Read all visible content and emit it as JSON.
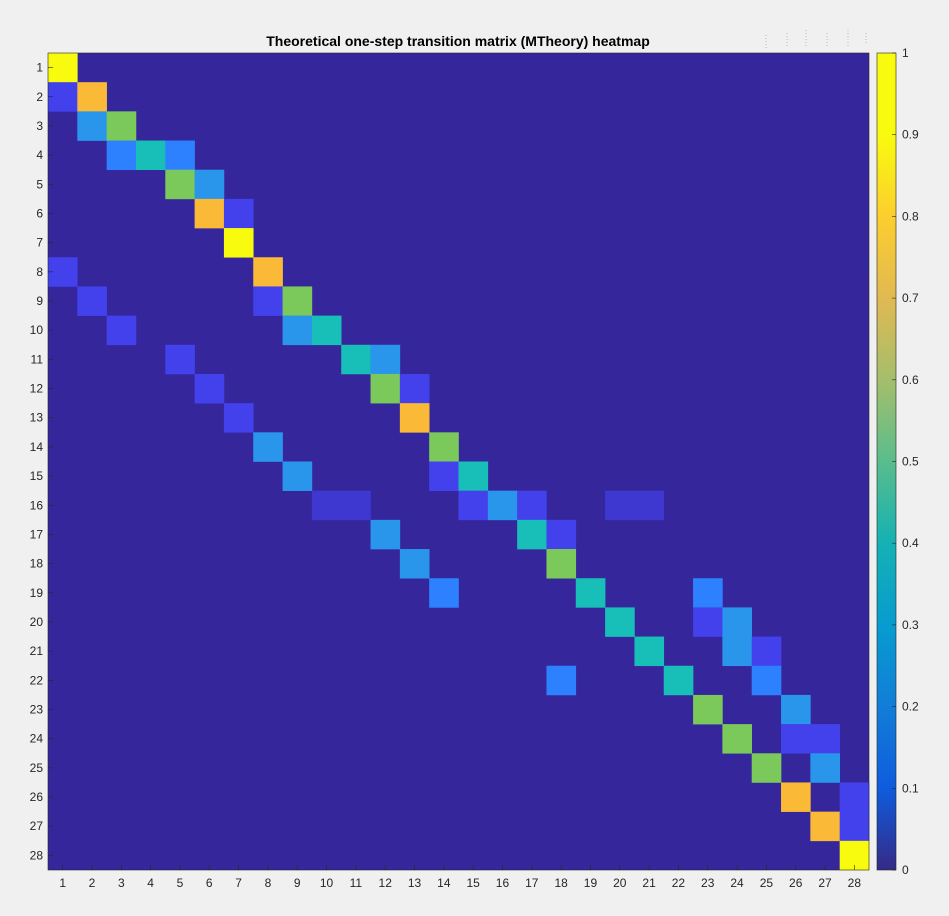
{
  "chart_data": {
    "type": "heatmap",
    "title": "Theoretical one-step transition matrix (MTheory) heatmap",
    "xlabel": "",
    "ylabel": "",
    "x_tick_labels": [
      "1",
      "2",
      "3",
      "4",
      "5",
      "6",
      "7",
      "8",
      "9",
      "10",
      "11",
      "12",
      "13",
      "14",
      "15",
      "16",
      "17",
      "18",
      "19",
      "20",
      "21",
      "22",
      "23",
      "24",
      "25",
      "26",
      "27",
      "28"
    ],
    "y_tick_labels": [
      "1",
      "2",
      "3",
      "4",
      "5",
      "6",
      "7",
      "8",
      "9",
      "10",
      "11",
      "12",
      "13",
      "14",
      "15",
      "16",
      "17",
      "18",
      "19",
      "20",
      "21",
      "22",
      "23",
      "24",
      "25",
      "26",
      "27",
      "28"
    ],
    "colorbar": {
      "range": [
        0,
        1
      ],
      "ticks": [
        0,
        0.1,
        0.2,
        0.3,
        0.4,
        0.5,
        0.6,
        0.7,
        0.8,
        0.9,
        1
      ],
      "tick_labels": [
        "0",
        "0.1",
        "0.2",
        "0.3",
        "0.4",
        "0.5",
        "0.6",
        "0.7",
        "0.8",
        "0.9",
        "1"
      ],
      "colormap": "parula"
    },
    "cells": [
      [
        1,
        1,
        1.0
      ],
      [
        2,
        1,
        0.15
      ],
      [
        2,
        2,
        0.85
      ],
      [
        3,
        2,
        0.3
      ],
      [
        3,
        3,
        0.7
      ],
      [
        4,
        3,
        0.25
      ],
      [
        4,
        4,
        0.5
      ],
      [
        4,
        5,
        0.25
      ],
      [
        5,
        5,
        0.7
      ],
      [
        5,
        6,
        0.3
      ],
      [
        6,
        6,
        0.85
      ],
      [
        6,
        7,
        0.15
      ],
      [
        7,
        7,
        1.0
      ],
      [
        8,
        1,
        0.15
      ],
      [
        8,
        8,
        0.85
      ],
      [
        9,
        2,
        0.15
      ],
      [
        9,
        8,
        0.15
      ],
      [
        9,
        9,
        0.7
      ],
      [
        10,
        3,
        0.15
      ],
      [
        10,
        9,
        0.3
      ],
      [
        10,
        10,
        0.5
      ],
      [
        11,
        5,
        0.15
      ],
      [
        11,
        11,
        0.5
      ],
      [
        11,
        12,
        0.3
      ],
      [
        12,
        6,
        0.15
      ],
      [
        12,
        12,
        0.7
      ],
      [
        12,
        13,
        0.15
      ],
      [
        13,
        7,
        0.15
      ],
      [
        13,
        13,
        0.85
      ],
      [
        14,
        8,
        0.3
      ],
      [
        14,
        14,
        0.7
      ],
      [
        15,
        9,
        0.3
      ],
      [
        15,
        14,
        0.15
      ],
      [
        15,
        15,
        0.5
      ],
      [
        16,
        10,
        0.1
      ],
      [
        16,
        11,
        0.1
      ],
      [
        16,
        15,
        0.15
      ],
      [
        16,
        16,
        0.3
      ],
      [
        16,
        17,
        0.15
      ],
      [
        16,
        20,
        0.1
      ],
      [
        16,
        21,
        0.1
      ],
      [
        17,
        12,
        0.3
      ],
      [
        17,
        17,
        0.5
      ],
      [
        17,
        18,
        0.15
      ],
      [
        18,
        13,
        0.3
      ],
      [
        18,
        18,
        0.7
      ],
      [
        19,
        14,
        0.25
      ],
      [
        19,
        19,
        0.5
      ],
      [
        19,
        23,
        0.25
      ],
      [
        20,
        20,
        0.5
      ],
      [
        20,
        23,
        0.15
      ],
      [
        20,
        24,
        0.3
      ],
      [
        21,
        21,
        0.5
      ],
      [
        21,
        24,
        0.3
      ],
      [
        21,
        25,
        0.15
      ],
      [
        22,
        18,
        0.25
      ],
      [
        22,
        22,
        0.5
      ],
      [
        22,
        25,
        0.25
      ],
      [
        23,
        23,
        0.7
      ],
      [
        23,
        26,
        0.3
      ],
      [
        24,
        24,
        0.7
      ],
      [
        24,
        26,
        0.15
      ],
      [
        24,
        27,
        0.15
      ],
      [
        25,
        25,
        0.7
      ],
      [
        25,
        27,
        0.3
      ],
      [
        26,
        26,
        0.85
      ],
      [
        26,
        28,
        0.15
      ],
      [
        27,
        27,
        0.85
      ],
      [
        27,
        28,
        0.15
      ],
      [
        28,
        28,
        1.0
      ]
    ],
    "baseline_value": 0
  }
}
